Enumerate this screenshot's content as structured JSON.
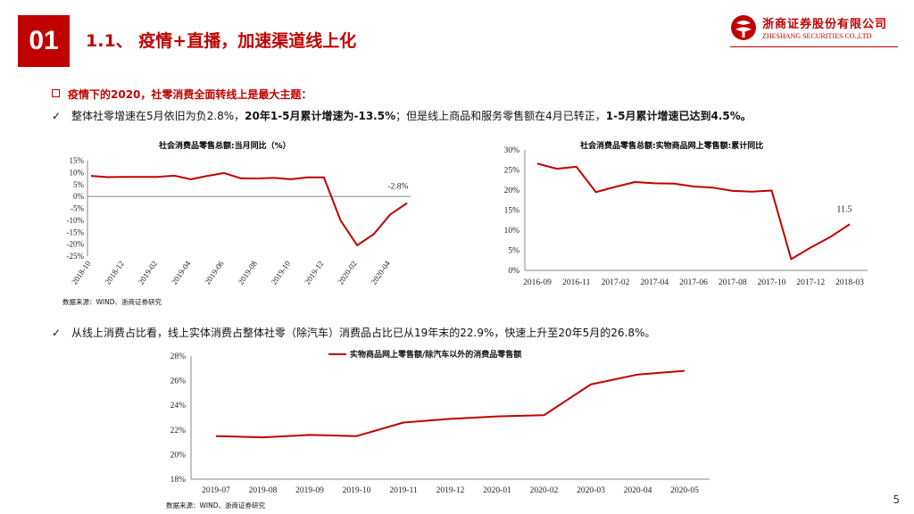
{
  "section_number": "01",
  "page_title": "1.1、 疫情+直播，加速渠道线上化",
  "logo": {
    "cn": "浙商证券股份有限公司",
    "en": "ZHESHANG SECURITIES CO.,LTD"
  },
  "heading": "疫情下的2020，社零消费全面转线上是最大主题：",
  "bullet1": {
    "check": "✓",
    "p1": "整体社零增速在5月依旧为负2.8%，",
    "p2": "20年1-5月累计增速为-13.5%",
    "p3": "；但是线上商品和服务零售额在4月已转正，",
    "p4": "1-5月累计增速已达到4.5%。"
  },
  "bullet2": {
    "check": "✓",
    "text": "从线上消费占比看，线上实体消费占整体社零（除汽车）消费品占比已从19年末的22.9%，快速上升至20年5月的26.8%。"
  },
  "source": "数据来源：WIND、浙商证券研究",
  "page_number": "5",
  "chart_data": [
    {
      "type": "line",
      "title": "社会消费品零售总额:当月同比（%）",
      "xlabel": "",
      "ylabel": "",
      "x": [
        "2018-10",
        "2018-11",
        "2018-12",
        "2019-01",
        "2019-02",
        "2019-03",
        "2019-04",
        "2019-05",
        "2019-06",
        "2019-07",
        "2019-08",
        "2019-09",
        "2019-10",
        "2019-11",
        "2019-12",
        "2020-01",
        "2020-02",
        "2020-03",
        "2020-04",
        "2020-05"
      ],
      "x_ticks": [
        "2018-10",
        "2018-12",
        "2019-02",
        "2019-04",
        "2019-06",
        "2019-08",
        "2019-10",
        "2019-12",
        "2020-02",
        "2020-04"
      ],
      "y_ticks": [
        "15%",
        "10%",
        "5%",
        "0%",
        "-5%",
        "-10%",
        "-15%",
        "-20%",
        "-25%"
      ],
      "ylim": [
        -25,
        15
      ],
      "series": [
        {
          "color": "#c00000",
          "values": [
            8.6,
            8.1,
            8.2,
            8.2,
            8.2,
            8.7,
            7.2,
            8.6,
            9.8,
            7.6,
            7.5,
            7.8,
            7.2,
            8.0,
            8.0,
            -10.0,
            -20.5,
            -15.8,
            -7.5,
            -2.8
          ]
        }
      ],
      "annotation": "-2.8%",
      "grid": false,
      "legend": "none"
    },
    {
      "type": "line",
      "title": "社会消费品零售总额:实物商品网上零售额:累计同比",
      "xlabel": "",
      "ylabel": "",
      "x_ticks": [
        "2016-09",
        "2016-11",
        "2017-02",
        "2017-04",
        "2017-06",
        "2017-08",
        "2017-10",
        "2017-12",
        "2018-03"
      ],
      "x_index": [
        0,
        1,
        2,
        3,
        4,
        5,
        6,
        7,
        8,
        9,
        10,
        11,
        12,
        13,
        14,
        15,
        16
      ],
      "y_ticks": [
        "30%",
        "25%",
        "20%",
        "15%",
        "10%",
        "5%",
        "0%"
      ],
      "ylim": [
        0,
        30
      ],
      "series": [
        {
          "color": "#c00000",
          "values": [
            26.6,
            25.3,
            25.8,
            19.5,
            20.8,
            22.0,
            21.7,
            21.6,
            20.9,
            20.6,
            19.8,
            19.6,
            19.9,
            2.8,
            5.7,
            8.3,
            11.5
          ]
        }
      ],
      "annotation": "11.5",
      "grid": false,
      "legend": "none"
    },
    {
      "type": "line",
      "title": "",
      "xlabel": "",
      "ylabel": "",
      "x": [
        "2019-07",
        "2019-08",
        "2019-09",
        "2019-10",
        "2019-11",
        "2019-12",
        "2020-01",
        "2020-02",
        "2020-03",
        "2020-04",
        "2020-05"
      ],
      "y_ticks": [
        "28%",
        "26%",
        "24%",
        "22%",
        "20%",
        "18%"
      ],
      "ylim": [
        18,
        28
      ],
      "series": [
        {
          "name": "实物商品网上零售额/除汽车以外的消费品零售额",
          "color": "#c00000",
          "values": [
            21.5,
            21.4,
            21.6,
            21.5,
            22.6,
            22.9,
            23.1,
            23.2,
            25.7,
            26.5,
            26.8
          ]
        }
      ],
      "grid": false,
      "legend": "top"
    }
  ]
}
